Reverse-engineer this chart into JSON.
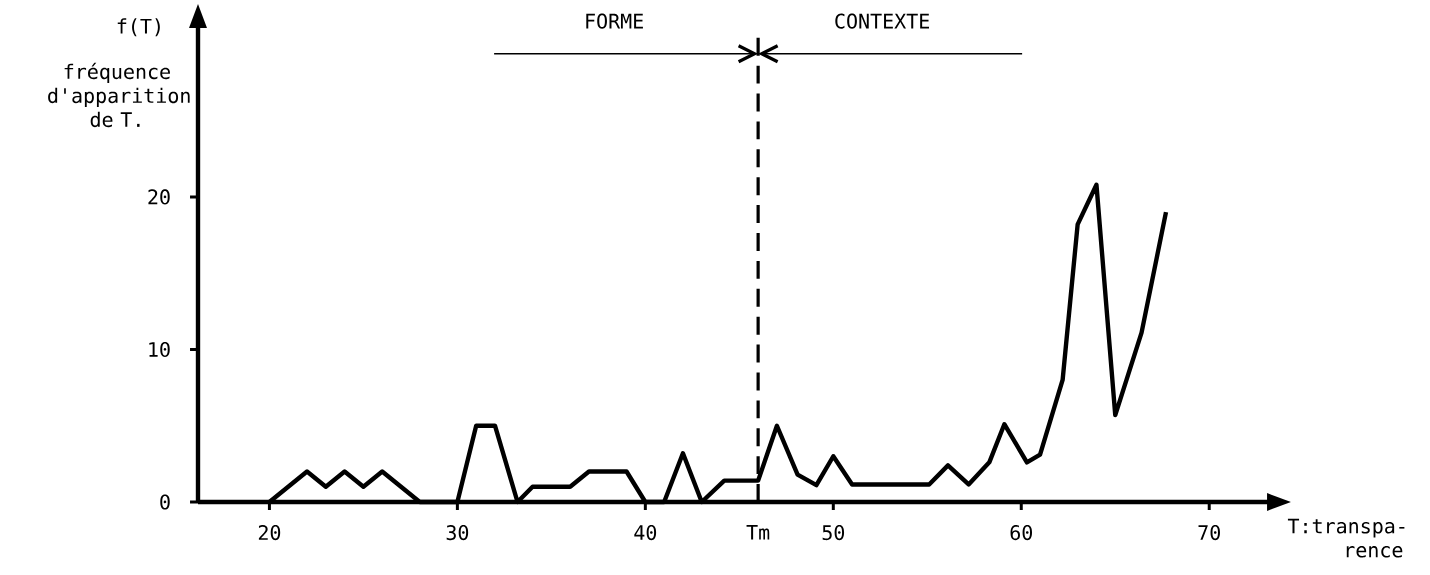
{
  "chart_data": {
    "type": "line",
    "ylabel": "f(T)",
    "xlabel": "T:transpa-rence",
    "annotations": [
      "fréquence d'apparition de T.",
      "FORME",
      "CONTEXTE"
    ],
    "x": [
      20,
      22,
      23,
      24,
      25,
      26,
      28,
      30,
      31,
      32,
      33.2,
      34,
      36,
      37,
      39,
      40,
      41,
      42,
      43,
      44.2,
      46,
      47,
      48.1,
      49.1,
      50,
      51,
      55.1,
      56.1,
      57.2,
      58.3,
      59.1,
      60.3,
      61,
      62.2,
      63,
      64,
      65,
      66.4,
      67.7
    ],
    "series": [
      {
        "color": "#000000",
        "values": [
          0,
          2,
          1,
          2,
          1,
          2,
          0,
          0,
          5,
          5,
          0,
          1,
          1,
          2,
          2,
          0,
          0,
          3.2,
          0,
          1.4,
          1.4,
          5,
          1.8,
          1.1,
          3,
          1.15,
          1.15,
          2.4,
          1.15,
          2.6,
          5.1,
          2.6,
          3.1,
          8,
          18.2,
          20.8,
          5.7,
          11.1,
          19
        ]
      }
    ],
    "xlim": [
      16.2,
      73.5
    ],
    "ylim": [
      0,
      31.6
    ],
    "xticks": [
      20,
      30,
      40,
      50,
      60,
      70
    ],
    "yticks": [
      0,
      10,
      20
    ],
    "ref_lines": [
      {
        "axis": "x",
        "value": 46,
        "label": "Tm",
        "line_style": "dashed",
        "color": "#000000"
      }
    ],
    "marker": "none",
    "line_style": "solid"
  }
}
